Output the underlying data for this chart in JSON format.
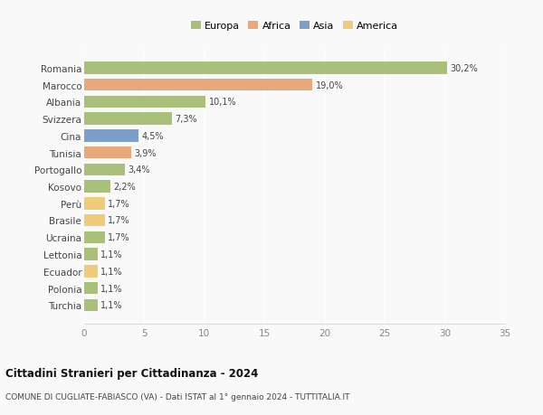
{
  "categories": [
    "Romania",
    "Marocco",
    "Albania",
    "Svizzera",
    "Cina",
    "Tunisia",
    "Portogallo",
    "Kosovo",
    "Perù",
    "Brasile",
    "Ucraina",
    "Lettonia",
    "Ecuador",
    "Polonia",
    "Turchia"
  ],
  "values": [
    30.2,
    19.0,
    10.1,
    7.3,
    4.5,
    3.9,
    3.4,
    2.2,
    1.7,
    1.7,
    1.7,
    1.1,
    1.1,
    1.1,
    1.1
  ],
  "labels": [
    "30,2%",
    "19,0%",
    "10,1%",
    "7,3%",
    "4,5%",
    "3,9%",
    "3,4%",
    "2,2%",
    "1,7%",
    "1,7%",
    "1,7%",
    "1,1%",
    "1,1%",
    "1,1%",
    "1,1%"
  ],
  "colors": [
    "#a8c07a",
    "#e8a87c",
    "#a8c07a",
    "#a8c07a",
    "#7b9fc9",
    "#e8a87c",
    "#a8c07a",
    "#a8c07a",
    "#f0cc7a",
    "#f0cc7a",
    "#a8c07a",
    "#a8c07a",
    "#f0cc7a",
    "#a8c07a",
    "#a8c07a"
  ],
  "legend": [
    {
      "label": "Europa",
      "color": "#a8c07a"
    },
    {
      "label": "Africa",
      "color": "#e8a87c"
    },
    {
      "label": "Asia",
      "color": "#7b9fc9"
    },
    {
      "label": "America",
      "color": "#f0cc7a"
    }
  ],
  "xlim": [
    0,
    35
  ],
  "xticks": [
    0,
    5,
    10,
    15,
    20,
    25,
    30,
    35
  ],
  "title": "Cittadini Stranieri per Cittadinanza - 2024",
  "subtitle": "COMUNE DI CUGLIATE-FABIASCO (VA) - Dati ISTAT al 1° gennaio 2024 - TUTTITALIA.IT",
  "background_color": "#f9f9f9",
  "grid_color": "#ffffff",
  "bar_height": 0.72
}
